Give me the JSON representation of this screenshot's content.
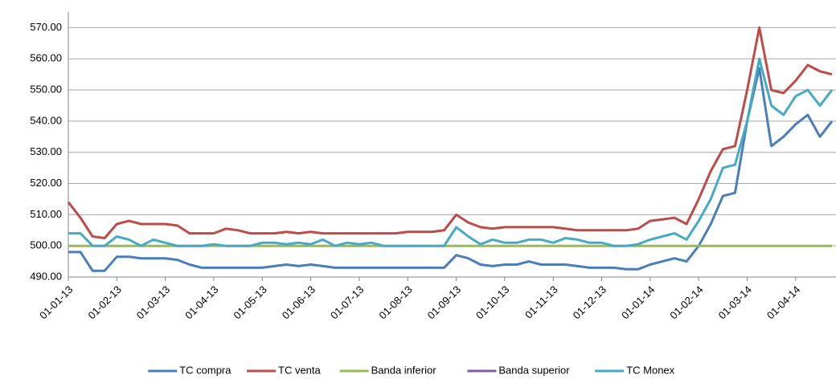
{
  "chart_data": {
    "type": "line",
    "categories": [
      "01-01-13",
      null,
      null,
      null,
      "01-02-13",
      null,
      null,
      null,
      "01-03-13",
      null,
      null,
      null,
      "01-04-13",
      null,
      null,
      null,
      "01-05-13",
      null,
      null,
      null,
      "01-06-13",
      null,
      null,
      null,
      "01-07-13",
      null,
      null,
      null,
      "01-08-13",
      null,
      null,
      null,
      "01-09-13",
      null,
      null,
      null,
      "01-10-13",
      null,
      null,
      null,
      "01-11-13",
      null,
      null,
      null,
      "01-12-13",
      null,
      null,
      null,
      "01-01-14",
      null,
      null,
      null,
      "01-02-14",
      null,
      null,
      null,
      "01-03-14",
      null,
      null,
      null,
      "01-04-14",
      null,
      null,
      null
    ],
    "series": [
      {
        "name": "TC compra",
        "color": "#4a7ebb",
        "values": [
          498,
          498,
          492,
          492,
          496.5,
          496.5,
          496,
          496,
          496,
          495.5,
          494,
          493,
          493,
          493,
          493,
          493,
          493,
          493.5,
          494,
          493.5,
          494,
          493.5,
          493,
          493,
          493,
          493,
          493,
          493,
          493,
          493,
          493,
          493,
          497,
          496,
          494,
          493.5,
          494,
          494,
          495,
          494,
          494,
          494,
          493.5,
          493,
          493,
          493,
          492.5,
          492.5,
          494,
          495,
          496,
          495,
          500,
          507,
          516,
          517,
          540,
          557,
          532,
          535,
          539,
          542,
          535,
          540
        ]
      },
      {
        "name": "TC venta",
        "color": "#be4b48",
        "values": [
          514,
          509,
          503,
          502.5,
          507,
          508,
          507,
          507,
          507,
          506.5,
          504,
          504,
          504,
          505.5,
          505,
          504,
          504,
          504,
          504.5,
          504,
          504.5,
          504,
          504,
          504,
          504,
          504,
          504,
          504,
          504.5,
          504.5,
          504.5,
          505,
          510,
          507.5,
          506,
          505.5,
          506,
          506,
          506,
          506,
          506,
          505.5,
          505,
          505,
          505,
          505,
          505,
          505.5,
          508,
          508.5,
          509,
          507,
          515,
          524,
          531,
          532,
          550,
          570,
          550,
          549,
          553,
          558,
          556,
          555
        ]
      },
      {
        "name": "Banda inferior",
        "color": "#98b954",
        "values": [
          500,
          500,
          500,
          500,
          500,
          500,
          500,
          500,
          500,
          500,
          500,
          500,
          500,
          500,
          500,
          500,
          500,
          500,
          500,
          500,
          500,
          500,
          500,
          500,
          500,
          500,
          500,
          500,
          500,
          500,
          500,
          500,
          500,
          500,
          500,
          500,
          500,
          500,
          500,
          500,
          500,
          500,
          500,
          500,
          500,
          500,
          500,
          500,
          500,
          500,
          500,
          500,
          500,
          500,
          500,
          500,
          500,
          500,
          500,
          500,
          500,
          500,
          500,
          500
        ]
      },
      {
        "name": "Banda superior",
        "color": "#7d60a0",
        "values": [
          null,
          null,
          null,
          null,
          null,
          null,
          null,
          null,
          null,
          null,
          null,
          null,
          null,
          null,
          null,
          null,
          null,
          null,
          null,
          null,
          null,
          null,
          null,
          null,
          null,
          null,
          null,
          null,
          null,
          null,
          null,
          null,
          null,
          null,
          null,
          null,
          null,
          null,
          null,
          null,
          null,
          null,
          null,
          null,
          null,
          null,
          null,
          null,
          null,
          null,
          null,
          null,
          null,
          null,
          null,
          null,
          null,
          null,
          null,
          null,
          null,
          null,
          null,
          null
        ]
      },
      {
        "name": "TC Monex",
        "color": "#46aac5",
        "values": [
          504,
          504,
          500,
          500,
          503,
          502,
          500,
          502,
          501,
          500,
          500,
          500,
          500.5,
          500,
          500,
          500,
          501,
          501,
          500.5,
          501,
          500.5,
          502,
          500,
          501,
          500.5,
          501,
          500,
          500,
          500,
          500,
          500,
          500,
          506,
          503,
          500.5,
          502,
          501,
          501,
          502,
          502,
          501,
          502.5,
          502,
          501,
          501,
          500,
          500,
          500.5,
          502,
          503,
          504,
          502,
          508,
          515,
          525,
          526,
          540,
          560,
          545,
          542,
          548,
          550,
          545,
          550
        ]
      }
    ],
    "ylim": [
      490,
      575
    ],
    "yticks": [
      {
        "value": 490,
        "label": "490.00"
      },
      {
        "value": 500,
        "label": "500.00"
      },
      {
        "value": 510,
        "label": "510.00"
      },
      {
        "value": 520,
        "label": "520.00"
      },
      {
        "value": 530,
        "label": "530.00"
      },
      {
        "value": 540,
        "label": "540.00"
      },
      {
        "value": 550,
        "label": "550.00"
      },
      {
        "value": 560,
        "label": "560.00"
      },
      {
        "value": 570,
        "label": "570.00"
      }
    ],
    "grid": true,
    "legend": "bottom"
  }
}
